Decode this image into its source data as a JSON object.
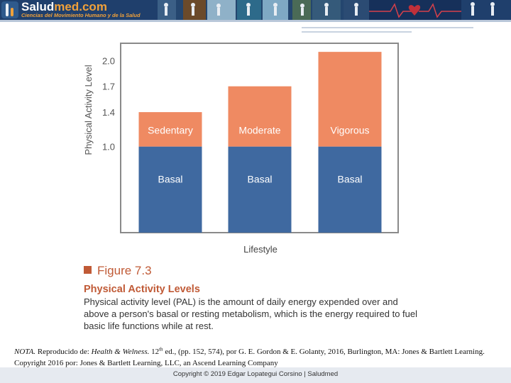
{
  "site": {
    "name_main": "Salud",
    "name_accent": "med.com",
    "tagline": "Ciencias del Movimiento Humano y de la Salud"
  },
  "chart_data": {
    "type": "bar",
    "ylabel": "Physical Activity Level",
    "xlabel": "Lifestyle",
    "yticks": [
      "1.0",
      "1.4",
      "1.7",
      "2.0"
    ],
    "ylim": [
      0.0,
      2.2
    ],
    "categories": [
      "Sedentary",
      "Moderate",
      "Vigorous"
    ],
    "series": [
      {
        "name": "Basal",
        "values": [
          1.0,
          1.0,
          1.0
        ]
      },
      {
        "values": [
          1.4,
          1.7,
          2.1
        ]
      }
    ],
    "segment_labels": {
      "base": "Basal",
      "top": [
        "Sedentary",
        "Moderate",
        "Vigorous"
      ]
    },
    "grid": false,
    "colors": {
      "basal": "#3f69a0",
      "activity": "#ef8a62",
      "frame": "#8a8a8a"
    }
  },
  "caption": {
    "figure_number": "Figure 7.3",
    "title": "Physical Activity Levels",
    "description": "Physical activity level (PAL) is the amount of daily energy expended over and above a person's basal or resting metabolism, which is the energy required to fuel basic life functions while at rest."
  },
  "note": {
    "label": "NOTA.",
    "prefix": " Reproducido de: ",
    "book": "Health & Welness.",
    "edition_num": " 12",
    "edition_sup": "th",
    "rest": " ed., (pp. 152, 574), por G. E. Gordon & E. Golanty, 2016, Burlington, MA: Jones & Bartlett Learning. Copyright 2016 por: Jones & Bartlett Learning, LLC, an Ascend Learning Company"
  },
  "footer": {
    "copyright": "Copyright © 2019 Edgar Lopategui Corsino | Saludmed"
  }
}
